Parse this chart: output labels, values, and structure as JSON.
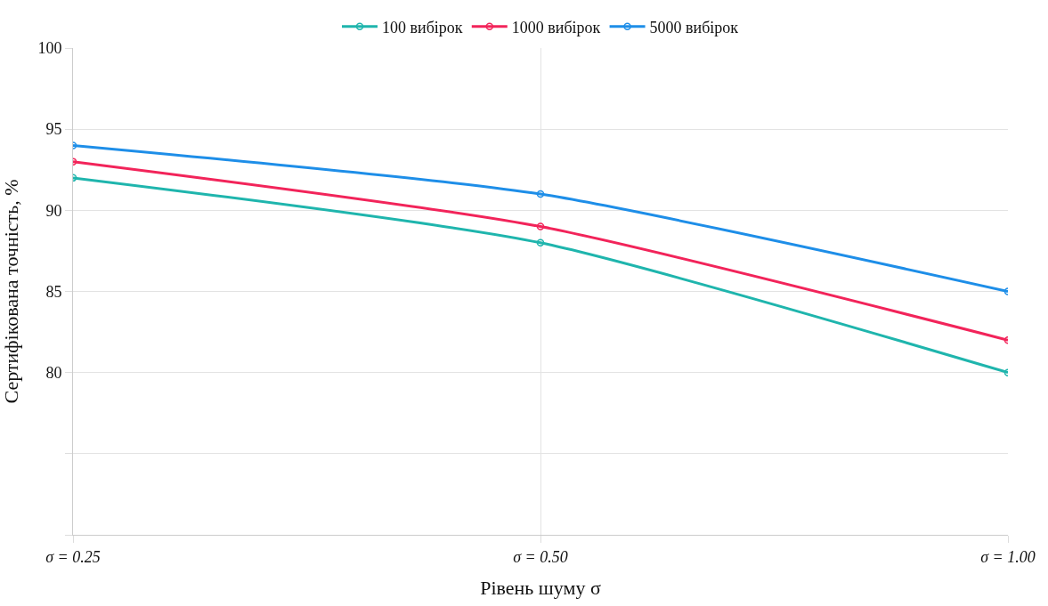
{
  "chart_data": {
    "type": "line",
    "categories": [
      "σ = 0.25",
      "σ = 0.50",
      "σ = 1.00"
    ],
    "xlabel": "Рівень шуму σ",
    "ylabel": "Сертифікована точність, %",
    "series": [
      {
        "name": "100 вибірок",
        "color": "#1fb5ad",
        "values": [
          92,
          88,
          80
        ]
      },
      {
        "name": "1000 вибірок",
        "color": "#f2245a",
        "values": [
          93,
          89,
          82
        ]
      },
      {
        "name": "5000 вибірок",
        "color": "#1e8ee8",
        "values": [
          94,
          91,
          85
        ]
      }
    ],
    "ylim": [
      70,
      100
    ],
    "yticks": [
      {
        "value": 70,
        "label": null
      },
      {
        "value": 75,
        "label": null
      },
      80,
      85,
      90,
      95,
      100
    ],
    "grid": true,
    "legend": "top",
    "marker": "circle",
    "line_style": "solid"
  }
}
